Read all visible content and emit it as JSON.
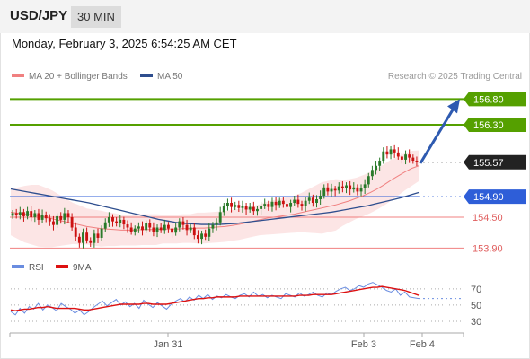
{
  "header": {
    "symbol": "USD/JPY",
    "period": "30 MIN"
  },
  "datetime": "Monday, February 3, 2025 6:54:25 AM CET",
  "legend": {
    "bollinger": {
      "label": "MA 20 + Bollinger Bands",
      "color": "#f08080"
    },
    "ma50": {
      "label": "MA 50",
      "color": "#2e4e8e"
    }
  },
  "copyright": "Research © 2025 Trading Central",
  "rsi_legend": {
    "rsi": {
      "label": "RSI",
      "color": "#6a8de0"
    },
    "ma9": {
      "label": "9MA",
      "color": "#dd1111"
    }
  },
  "colors": {
    "up": "#2a7a2a",
    "down": "#cc1111",
    "target": "#55a000",
    "pivot": "#2e5ed8",
    "support": "#f08080",
    "last": "#222222",
    "arrow": "#2e5ab0"
  },
  "chart_data": [
    {
      "type": "candlestick",
      "title": "USD/JPY 30 MIN",
      "ylim": [
        153.75,
        157.05
      ],
      "x_ticks": [
        "Jan 31",
        "Feb 3",
        "Feb 4"
      ],
      "levels": [
        {
          "label": "156.80",
          "value": 156.8,
          "kind": "target"
        },
        {
          "label": "156.30",
          "value": 156.3,
          "kind": "target"
        },
        {
          "label": "155.57",
          "value": 155.57,
          "kind": "last"
        },
        {
          "label": "154.90",
          "value": 154.9,
          "kind": "pivot"
        },
        {
          "label": "154.50",
          "value": 154.5,
          "kind": "support"
        },
        {
          "label": "153.90",
          "value": 153.9,
          "kind": "support"
        }
      ],
      "forecast_arrow": {
        "from": 155.55,
        "to": 156.8
      },
      "candles_close": [
        154.58,
        154.55,
        154.6,
        154.52,
        154.62,
        154.5,
        154.58,
        154.45,
        154.55,
        154.48,
        154.42,
        154.35,
        154.52,
        154.45,
        154.58,
        154.5,
        154.3,
        154.12,
        154.0,
        154.2,
        154.05,
        154.0,
        154.18,
        154.1,
        154.28,
        154.4,
        154.5,
        154.42,
        154.38,
        154.45,
        154.36,
        154.3,
        154.22,
        154.28,
        154.32,
        154.25,
        154.38,
        154.3,
        154.22,
        154.3,
        154.25,
        154.35,
        154.28,
        154.2,
        154.3,
        154.42,
        154.35,
        154.25,
        154.3,
        154.15,
        154.08,
        154.18,
        154.12,
        154.28,
        154.35,
        154.4,
        154.6,
        154.72,
        154.78,
        154.7,
        154.74,
        154.68,
        154.72,
        154.65,
        154.7,
        154.62,
        154.66,
        154.72,
        154.76,
        154.7,
        154.8,
        154.74,
        154.82,
        154.76,
        154.7,
        154.78,
        154.84,
        154.76,
        154.72,
        154.82,
        154.88,
        154.78,
        154.85,
        154.92,
        155.08,
        155.0,
        155.05,
        155.02,
        155.1,
        155.06,
        155.12,
        155.04,
        155.08,
        155.0,
        155.06,
        155.14,
        155.3,
        155.42,
        155.5,
        155.6,
        155.78,
        155.72,
        155.82,
        155.76,
        155.68,
        155.62,
        155.72,
        155.66,
        155.6,
        155.57
      ],
      "ma20": [
        154.6,
        154.58,
        154.56,
        154.55,
        154.53,
        154.5,
        154.47,
        154.44,
        154.41,
        154.38,
        154.35,
        154.32,
        154.3,
        154.28,
        154.27,
        154.26,
        154.25,
        154.25,
        154.25,
        154.26,
        154.26,
        154.26,
        154.27,
        154.27,
        154.27,
        154.28,
        154.28,
        154.29,
        154.29,
        154.3,
        154.31,
        154.32,
        154.34,
        154.36,
        154.39,
        154.42,
        154.45,
        154.48,
        154.5,
        154.52,
        154.54,
        154.56,
        154.59,
        154.62,
        154.65,
        154.68,
        154.71,
        154.74,
        154.78,
        154.82,
        154.87,
        154.92,
        154.98,
        155.05,
        155.13,
        155.22,
        155.3,
        155.38,
        155.45,
        155.5
      ],
      "ma50": [
        155.05,
        155.02,
        154.99,
        154.96,
        154.93,
        154.9,
        154.87,
        154.84,
        154.81,
        154.78,
        154.74,
        154.7,
        154.66,
        154.62,
        154.58,
        154.54,
        154.5,
        154.46,
        154.43,
        154.4,
        154.38,
        154.37,
        154.36,
        154.36,
        154.36,
        154.37,
        154.38,
        154.4,
        154.42,
        154.44,
        154.46,
        154.48,
        154.5,
        154.52,
        154.54,
        154.56,
        154.58,
        154.6,
        154.63,
        154.66,
        154.69,
        154.72,
        154.76,
        154.8,
        154.84,
        154.88,
        154.93,
        154.98
      ],
      "bb_width": [
        0.45,
        0.5,
        0.55,
        0.58,
        0.6,
        0.58,
        0.55,
        0.5,
        0.45,
        0.4,
        0.38,
        0.35,
        0.35,
        0.35,
        0.33,
        0.32,
        0.3,
        0.3,
        0.3,
        0.3,
        0.3,
        0.3,
        0.28,
        0.28,
        0.28,
        0.28,
        0.28,
        0.3,
        0.3,
        0.3,
        0.3,
        0.3,
        0.3,
        0.3,
        0.3,
        0.3,
        0.3,
        0.32,
        0.33,
        0.34,
        0.35,
        0.36,
        0.38,
        0.42,
        0.46,
        0.5,
        0.5,
        0.5,
        0.45,
        0.42,
        0.4,
        0.4,
        0.4,
        0.4,
        0.4,
        0.4,
        0.38,
        0.36,
        0.34,
        0.3
      ]
    },
    {
      "type": "line",
      "title": "RSI",
      "ylim": [
        20,
        82
      ],
      "y_ticks": [
        "70",
        "50",
        "30"
      ],
      "dotted_levels": [
        70,
        50,
        30
      ],
      "series": [
        {
          "name": "RSI",
          "values": [
            42,
            38,
            46,
            40,
            48,
            45,
            52,
            44,
            50,
            47,
            43,
            52,
            48,
            45,
            40,
            44,
            38,
            42,
            47,
            51,
            55,
            49,
            53,
            57,
            50,
            54,
            48,
            52,
            46,
            56,
            51,
            47,
            53,
            49,
            45,
            51,
            55,
            58,
            54,
            60,
            56,
            62,
            58,
            63,
            57,
            61,
            59,
            63,
            60,
            58,
            62,
            64,
            60,
            66,
            61,
            63,
            59,
            62,
            60,
            58,
            64,
            62,
            60,
            65,
            61,
            63,
            66,
            62,
            60,
            65,
            63,
            67,
            70,
            72,
            68,
            70,
            74,
            72,
            76,
            78,
            75,
            72,
            68,
            66,
            70,
            62,
            66,
            60,
            59,
            58
          ]
        },
        {
          "name": "9MA",
          "values": [
            44,
            43,
            44,
            45,
            45,
            46,
            47,
            47,
            48,
            47,
            46,
            46,
            46,
            46,
            46,
            45,
            44,
            44,
            45,
            46,
            47,
            48,
            49,
            50,
            51,
            51,
            51,
            51,
            51,
            52,
            52,
            51,
            51,
            51,
            51,
            52,
            53,
            54,
            55,
            56,
            57,
            58,
            58,
            59,
            59,
            60,
            60,
            60,
            60,
            60,
            61,
            61,
            61,
            61,
            61,
            61,
            61,
            61,
            61,
            61,
            61,
            61,
            61,
            62,
            62,
            62,
            63,
            63,
            63,
            63,
            63,
            64,
            65,
            66,
            67,
            68,
            69,
            70,
            71,
            72,
            72,
            73,
            72,
            71,
            70,
            69,
            68,
            66,
            64,
            62
          ]
        }
      ]
    }
  ]
}
